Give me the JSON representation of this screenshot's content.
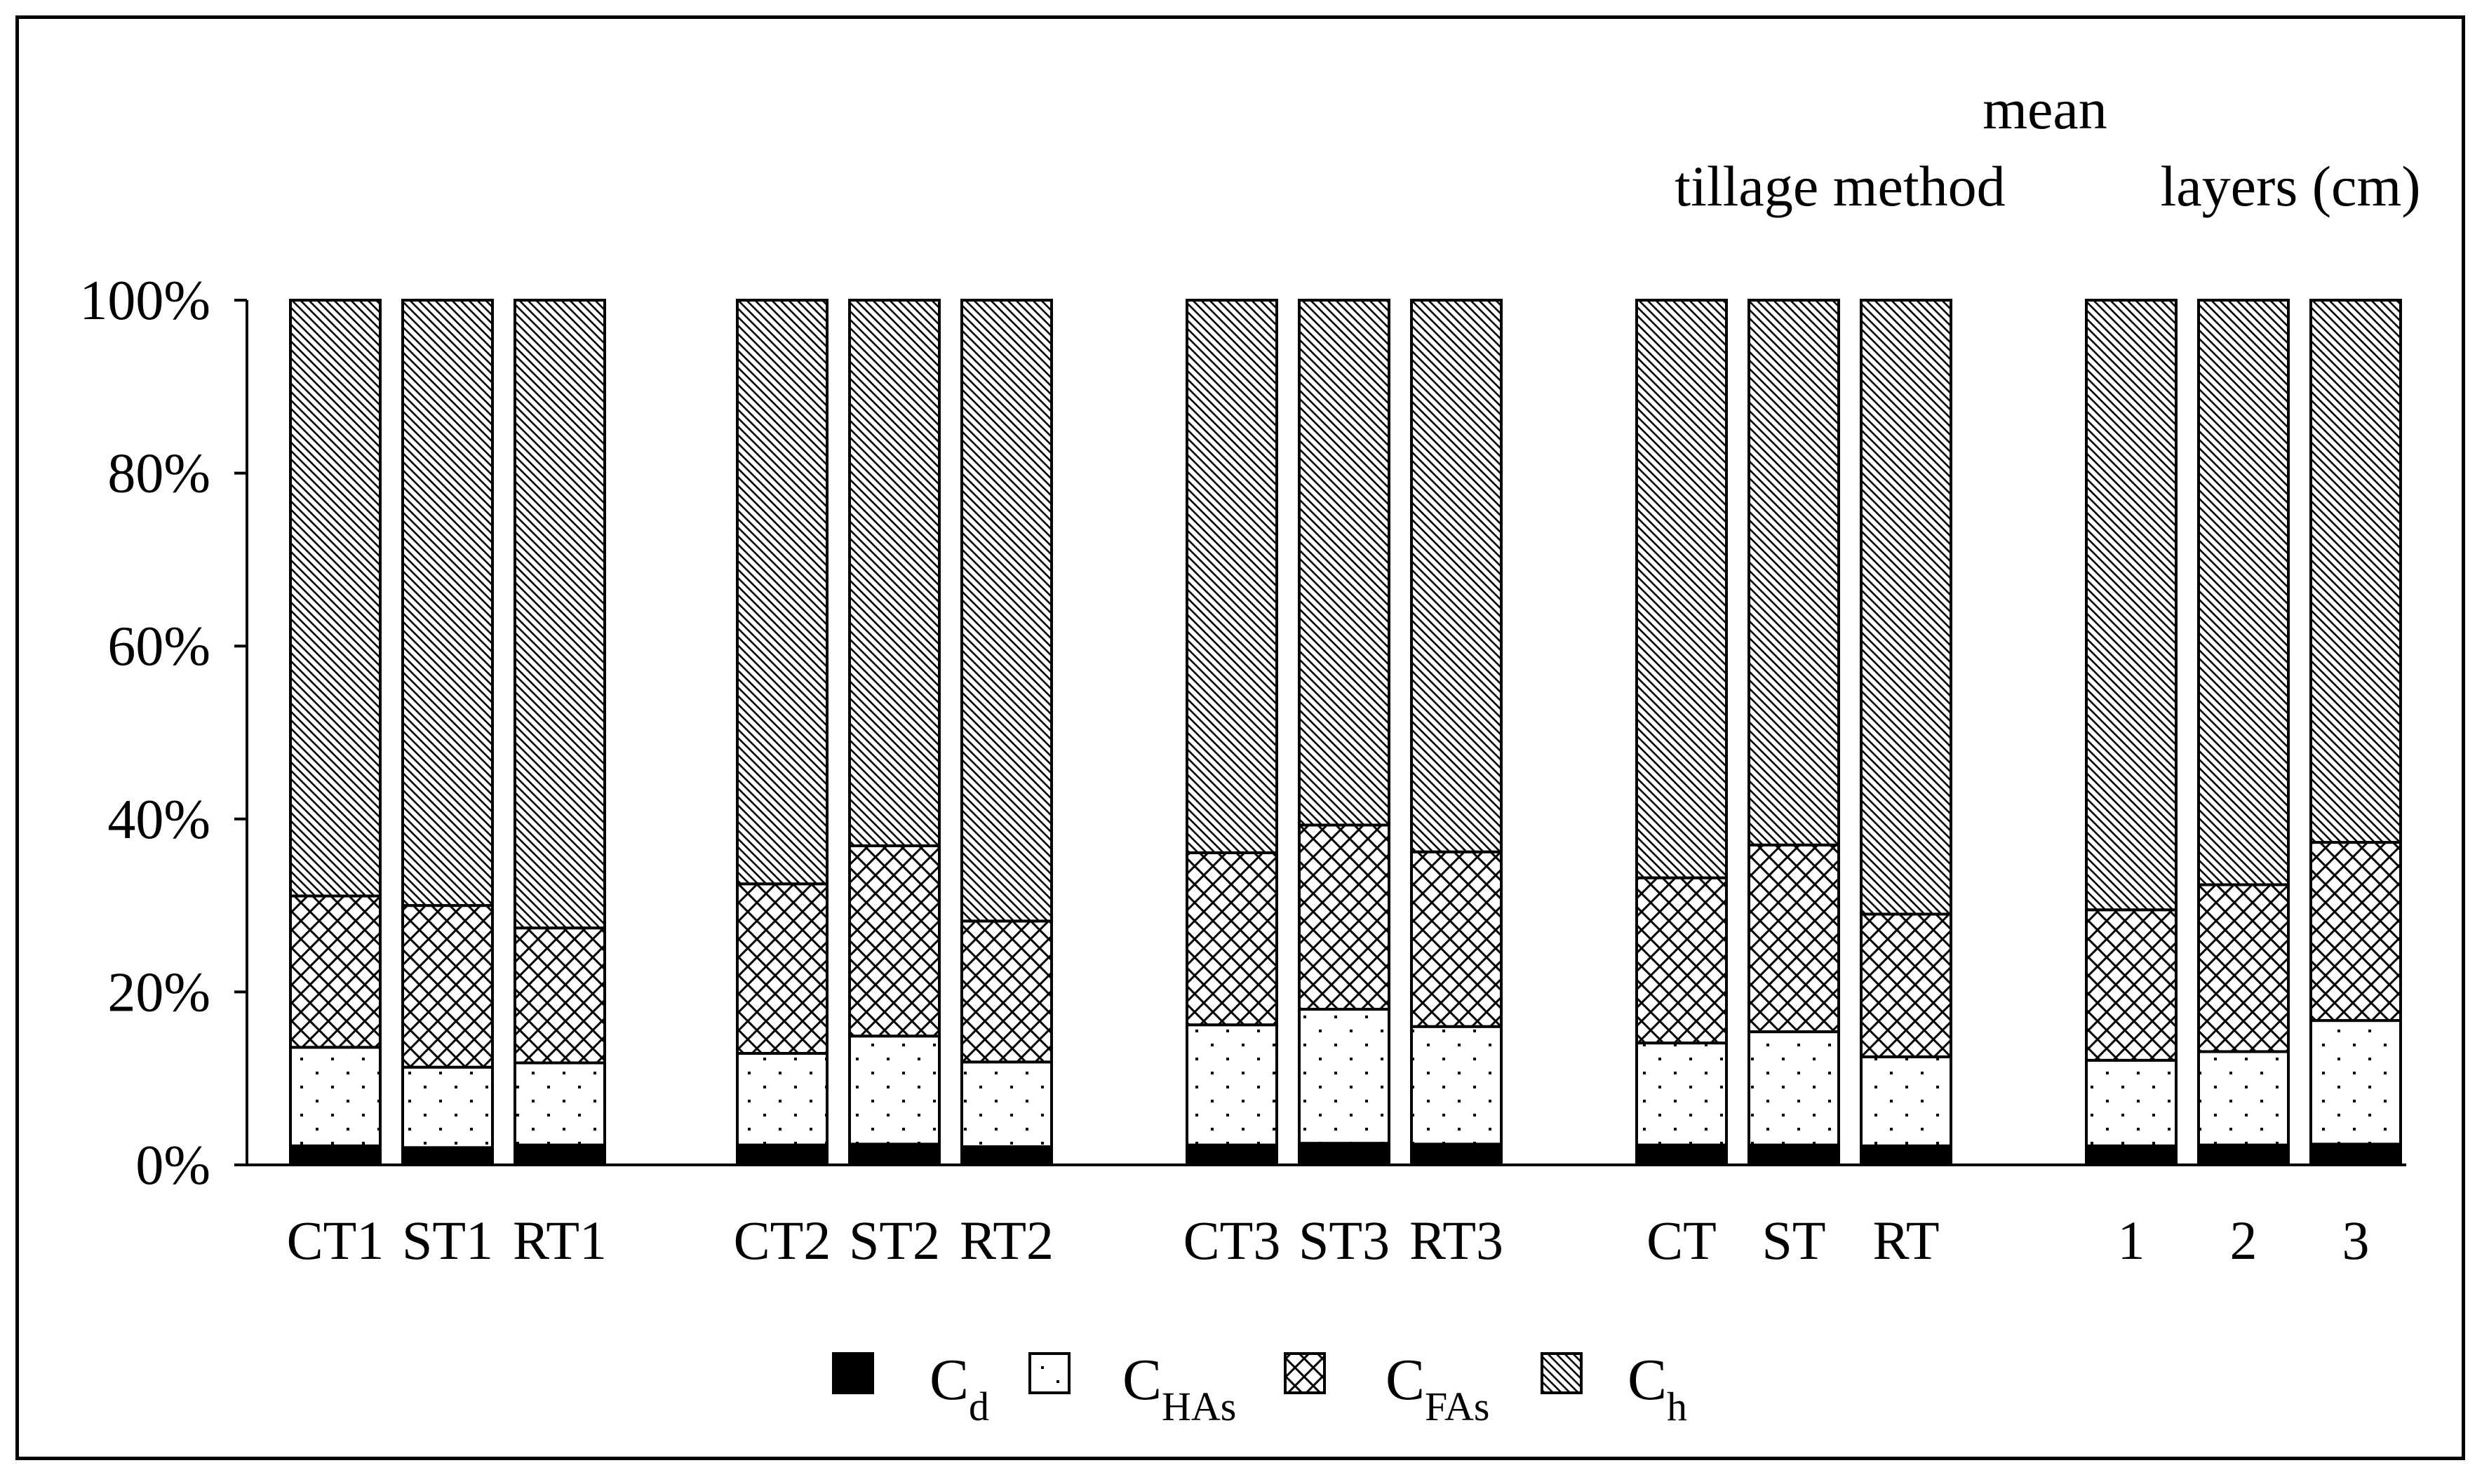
{
  "chart_data": {
    "type": "bar",
    "stacked": true,
    "percent_stacked": true,
    "groups": [
      {
        "label": "",
        "categories": [
          "CT1",
          "ST1",
          "RT1"
        ],
        "group_tick_label": "CT1ST1RT1"
      },
      {
        "label": "",
        "categories": [
          "CT2",
          "ST2",
          "RT2"
        ],
        "group_tick_label": "CT2ST2RT2"
      },
      {
        "label": "",
        "categories": [
          "CT3",
          "ST3",
          "RT3"
        ],
        "group_tick_label": "CT3ST3RT3"
      },
      {
        "label": "tillage method",
        "categories": [
          "CT",
          "ST",
          "RT"
        ],
        "group_tick_label": "CT  ST  RT"
      },
      {
        "label": "mean\nlayers (cm)",
        "categories": [
          "1",
          "2",
          "3"
        ],
        "group_tick_label": "1    2    3"
      }
    ],
    "header_labels": {
      "tillage": "tillage method",
      "mean": "mean",
      "layers": "layers (cm)"
    },
    "categories": [
      "CT1",
      "ST1",
      "RT1",
      "CT2",
      "ST2",
      "RT2",
      "CT3",
      "ST3",
      "RT3",
      "CT",
      "ST",
      "RT",
      "1",
      "2",
      "3"
    ],
    "series": [
      {
        "name": "Cd",
        "name_main": "C",
        "name_sub": "d",
        "pattern": "solid",
        "values": [
          2.2,
          2.0,
          2.3,
          2.3,
          2.4,
          2.1,
          2.3,
          2.5,
          2.4,
          2.3,
          2.3,
          2.2,
          2.2,
          2.3,
          2.4
        ]
      },
      {
        "name": "CHAs",
        "name_main": "C",
        "name_sub": "HAs",
        "pattern": "dots",
        "values": [
          11.4,
          9.3,
          9.5,
          10.6,
          12.5,
          9.8,
          13.9,
          15.5,
          13.6,
          11.8,
          13.1,
          10.3,
          9.9,
          10.8,
          14.3
        ]
      },
      {
        "name": "CFAs",
        "name_main": "C",
        "name_sub": "FAs",
        "pattern": "crosshatch",
        "values": [
          17.5,
          18.7,
          15.6,
          19.6,
          22.0,
          16.3,
          19.9,
          21.3,
          20.2,
          19.1,
          21.6,
          16.5,
          17.4,
          19.3,
          20.6
        ]
      },
      {
        "name": "Ch",
        "name_main": "C",
        "name_sub": "h",
        "pattern": "diagonal",
        "values": [
          68.9,
          70.0,
          72.6,
          67.5,
          63.1,
          71.8,
          63.9,
          60.7,
          63.8,
          66.8,
          63.0,
          71.0,
          70.5,
          67.6,
          62.7
        ]
      }
    ],
    "y_axis": {
      "ylim": [
        0,
        100
      ],
      "ticks": [
        "0%",
        "20%",
        "40%",
        "60%",
        "80%",
        "100%"
      ],
      "tick_values": [
        0,
        20,
        40,
        60,
        80,
        100
      ]
    },
    "xlabel": "",
    "ylabel": "",
    "title": "",
    "grid": false,
    "legend_position": "bottom-center"
  }
}
